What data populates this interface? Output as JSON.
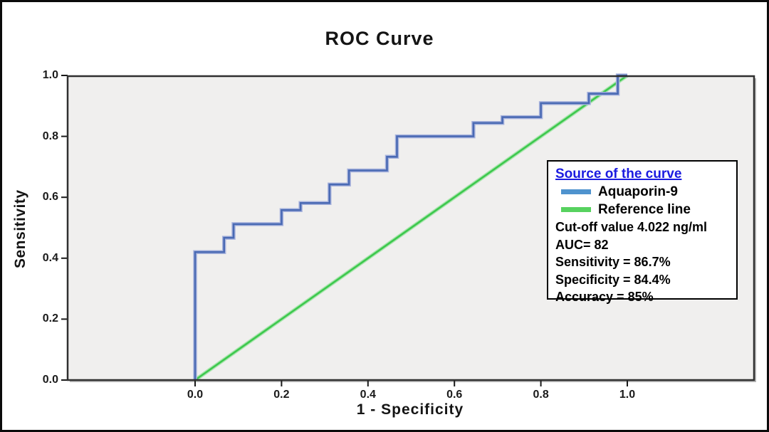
{
  "figure": {
    "title": "ROC Curve",
    "x_axis_label": "1 - Specificity",
    "y_axis_label": "Sensitivity"
  },
  "chart_data": {
    "type": "line",
    "subtype": "roc-step-plot",
    "title": "ROC Curve",
    "xlabel": "1 - Specificity",
    "ylabel": "Sensitivity",
    "xlim": [
      0,
      1
    ],
    "ylim": [
      0,
      1
    ],
    "x_ticks": [
      "0.0",
      "0.2",
      "0.4",
      "0.6",
      "0.8",
      "1.0"
    ],
    "y_ticks": [
      "0.0",
      "0.2",
      "0.4",
      "0.6",
      "0.8",
      "1.0"
    ],
    "grid": false,
    "legend_position": "right-inside",
    "series": [
      {
        "name": "Aquaporin-9",
        "style": "step",
        "color": "#4a6ab4",
        "halo_color": "#a9b4dd",
        "points": [
          [
            0.0,
            0.0
          ],
          [
            0.0,
            0.42
          ],
          [
            0.067,
            0.42
          ],
          [
            0.067,
            0.467
          ],
          [
            0.089,
            0.467
          ],
          [
            0.089,
            0.512
          ],
          [
            0.2,
            0.512
          ],
          [
            0.2,
            0.558
          ],
          [
            0.244,
            0.558
          ],
          [
            0.244,
            0.581
          ],
          [
            0.311,
            0.581
          ],
          [
            0.311,
            0.642
          ],
          [
            0.356,
            0.642
          ],
          [
            0.356,
            0.688
          ],
          [
            0.444,
            0.688
          ],
          [
            0.444,
            0.733
          ],
          [
            0.467,
            0.733
          ],
          [
            0.467,
            0.8
          ],
          [
            0.644,
            0.8
          ],
          [
            0.644,
            0.844
          ],
          [
            0.711,
            0.844
          ],
          [
            0.711,
            0.863
          ],
          [
            0.8,
            0.863
          ],
          [
            0.8,
            0.909
          ],
          [
            0.911,
            0.909
          ],
          [
            0.911,
            0.94
          ],
          [
            0.978,
            0.94
          ],
          [
            0.978,
            1.0
          ],
          [
            1.0,
            1.0
          ]
        ]
      },
      {
        "name": "Reference line",
        "style": "straight",
        "color": "#3ec84e",
        "halo_color": "#ace6b0",
        "points": [
          [
            0.0,
            0.0
          ],
          [
            1.0,
            1.0
          ]
        ]
      }
    ]
  },
  "legend": {
    "title": "Source of the curve",
    "title_color": "#1b1be0",
    "items": [
      {
        "label": "Aquaporin-9",
        "swatch_color": "#4f93ce"
      },
      {
        "label": "Reference line",
        "swatch_color": "#57d25f"
      }
    ],
    "stats": [
      "Cut-off value 4.022 ng/ml",
      "AUC= 82",
      "Sensitivity = 86.7%",
      "Specificity = 84.4%",
      "Accuracy = 85%"
    ]
  },
  "colors": {
    "plot_background": "#f0efee",
    "frame": "#2f2f2f",
    "tick": "#1a1a1a",
    "text": "#141414"
  }
}
